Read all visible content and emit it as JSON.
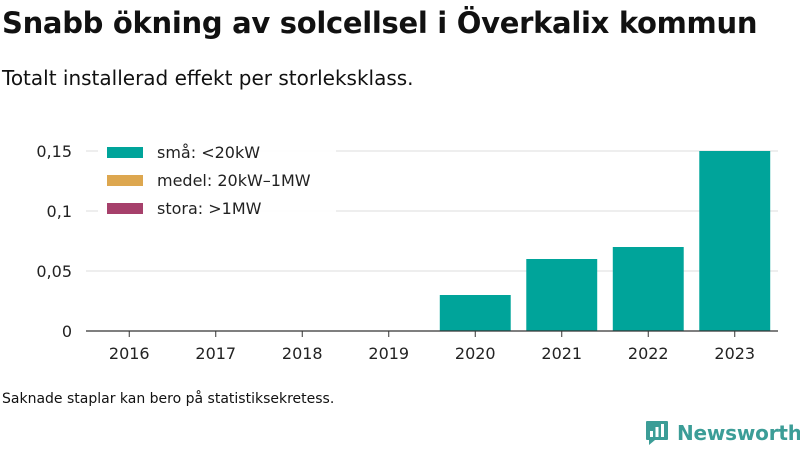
{
  "header": {
    "title": "Snabb ökning av solcellsel i Överkalix kommun",
    "subtitle": "Totalt installerad effekt per storleksklass."
  },
  "footnote": "Saknade staplar kan bero på statistiksekretess.",
  "brand": {
    "name": "Newsworthy",
    "color": "#3c9d97",
    "icon": "bar-chart-speech-bubble-icon"
  },
  "chart_data": {
    "type": "bar",
    "stacked": true,
    "categories": [
      "2016",
      "2017",
      "2018",
      "2019",
      "2020",
      "2021",
      "2022",
      "2023"
    ],
    "series": [
      {
        "name": "små: <20kW",
        "color": "#00a49a",
        "values": [
          0,
          0,
          0,
          0,
          0.03,
          0.06,
          0.07,
          0.15
        ]
      },
      {
        "name": "medel: 20kW–1MW",
        "color": "#dda74f",
        "values": [
          0,
          0,
          0,
          0,
          0,
          0,
          0,
          0
        ]
      },
      {
        "name": "stora: >1MW",
        "color": "#a6406b",
        "values": [
          0,
          0,
          0,
          0,
          0,
          0,
          0,
          0
        ]
      }
    ],
    "yticks": [
      0,
      0.05,
      0.1,
      0.15
    ],
    "ytick_labels": [
      "0",
      "0,05",
      "0,1",
      "0,15"
    ],
    "ylim": [
      0,
      0.15
    ],
    "xlabel": "",
    "ylabel": "",
    "grid": "horizontal",
    "legend_position": "top-left"
  }
}
